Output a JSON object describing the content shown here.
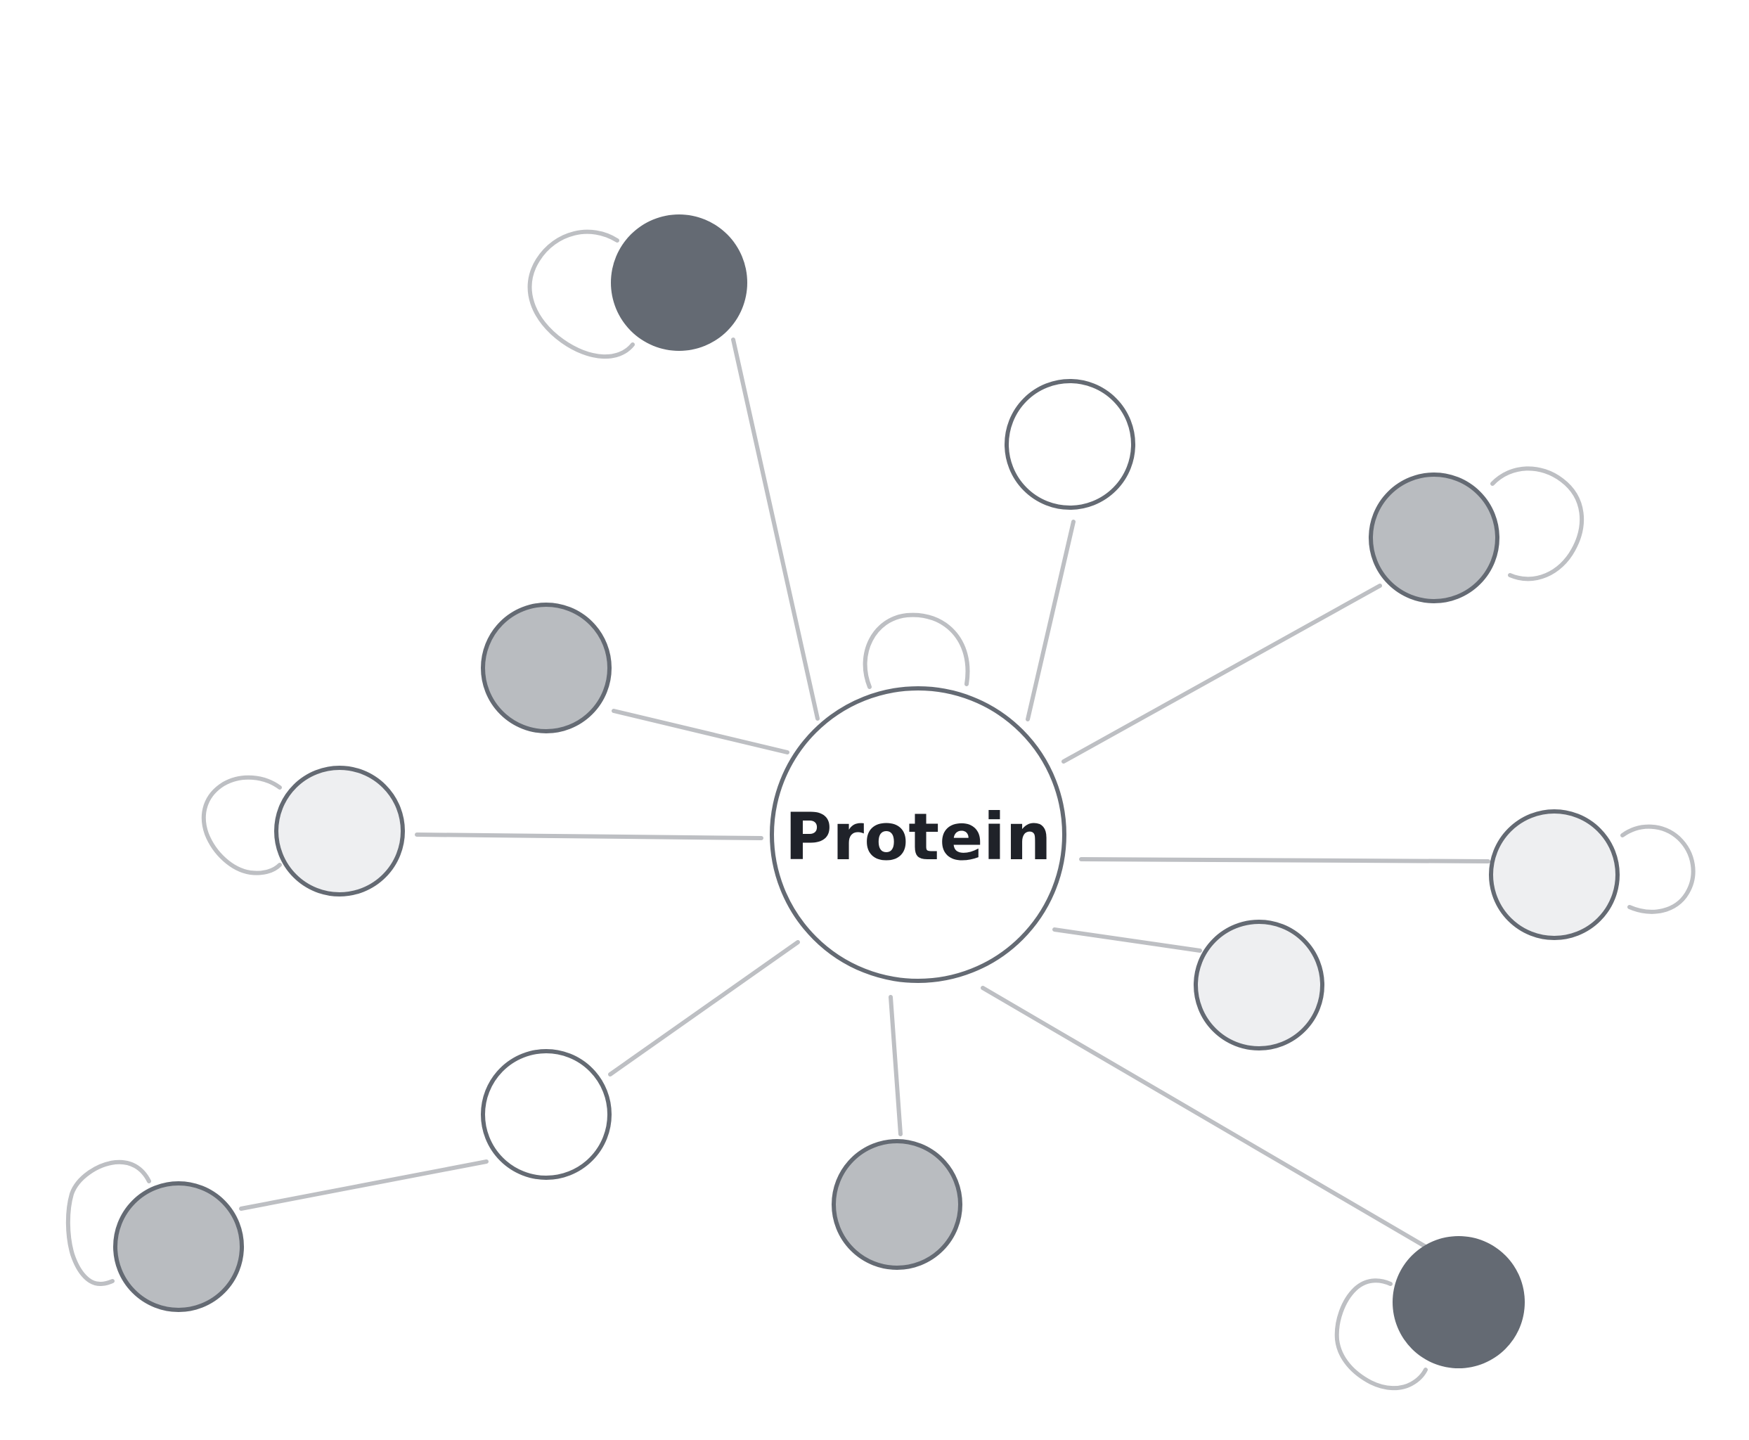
{
  "diagram": {
    "center": {
      "label": "Protein"
    },
    "palette": {
      "dark": "#646a73",
      "medium": "#b9bcc0",
      "light": "#eeeff1",
      "white": "#ffffff",
      "outline": "#646a73",
      "edge": "#bdbfc3",
      "text": "#1f2229"
    },
    "nodes": [
      {
        "id": "top-left-dark",
        "fill": "dark",
        "outline": false,
        "self_loop": true
      },
      {
        "id": "top-white",
        "fill": "white",
        "outline": true,
        "self_loop": false
      },
      {
        "id": "right-upper-medium",
        "fill": "medium",
        "outline": true,
        "self_loop": true
      },
      {
        "id": "left-upper-medium",
        "fill": "medium",
        "outline": true,
        "self_loop": false
      },
      {
        "id": "left-light",
        "fill": "light",
        "outline": true,
        "self_loop": true
      },
      {
        "id": "right-light",
        "fill": "light",
        "outline": true,
        "self_loop": true
      },
      {
        "id": "right-lower-light",
        "fill": "light",
        "outline": true,
        "self_loop": false
      },
      {
        "id": "bottom-left-white",
        "fill": "white",
        "outline": true,
        "self_loop": false
      },
      {
        "id": "far-left-medium",
        "fill": "medium",
        "outline": true,
        "self_loop": true
      },
      {
        "id": "bottom-medium",
        "fill": "medium",
        "outline": true,
        "self_loop": false
      },
      {
        "id": "bottom-right-dark",
        "fill": "dark",
        "outline": false,
        "self_loop": true
      }
    ],
    "edges": [
      {
        "from": "center",
        "to": "top-left-dark"
      },
      {
        "from": "center",
        "to": "top-white"
      },
      {
        "from": "center",
        "to": "right-upper-medium"
      },
      {
        "from": "center",
        "to": "left-upper-medium"
      },
      {
        "from": "center",
        "to": "left-light"
      },
      {
        "from": "center",
        "to": "right-light"
      },
      {
        "from": "center",
        "to": "right-lower-light"
      },
      {
        "from": "center",
        "to": "bottom-left-white"
      },
      {
        "from": "center",
        "to": "bottom-medium"
      },
      {
        "from": "center",
        "to": "bottom-right-dark"
      },
      {
        "from": "bottom-left-white",
        "to": "far-left-medium"
      }
    ],
    "center_self_loop": true
  }
}
